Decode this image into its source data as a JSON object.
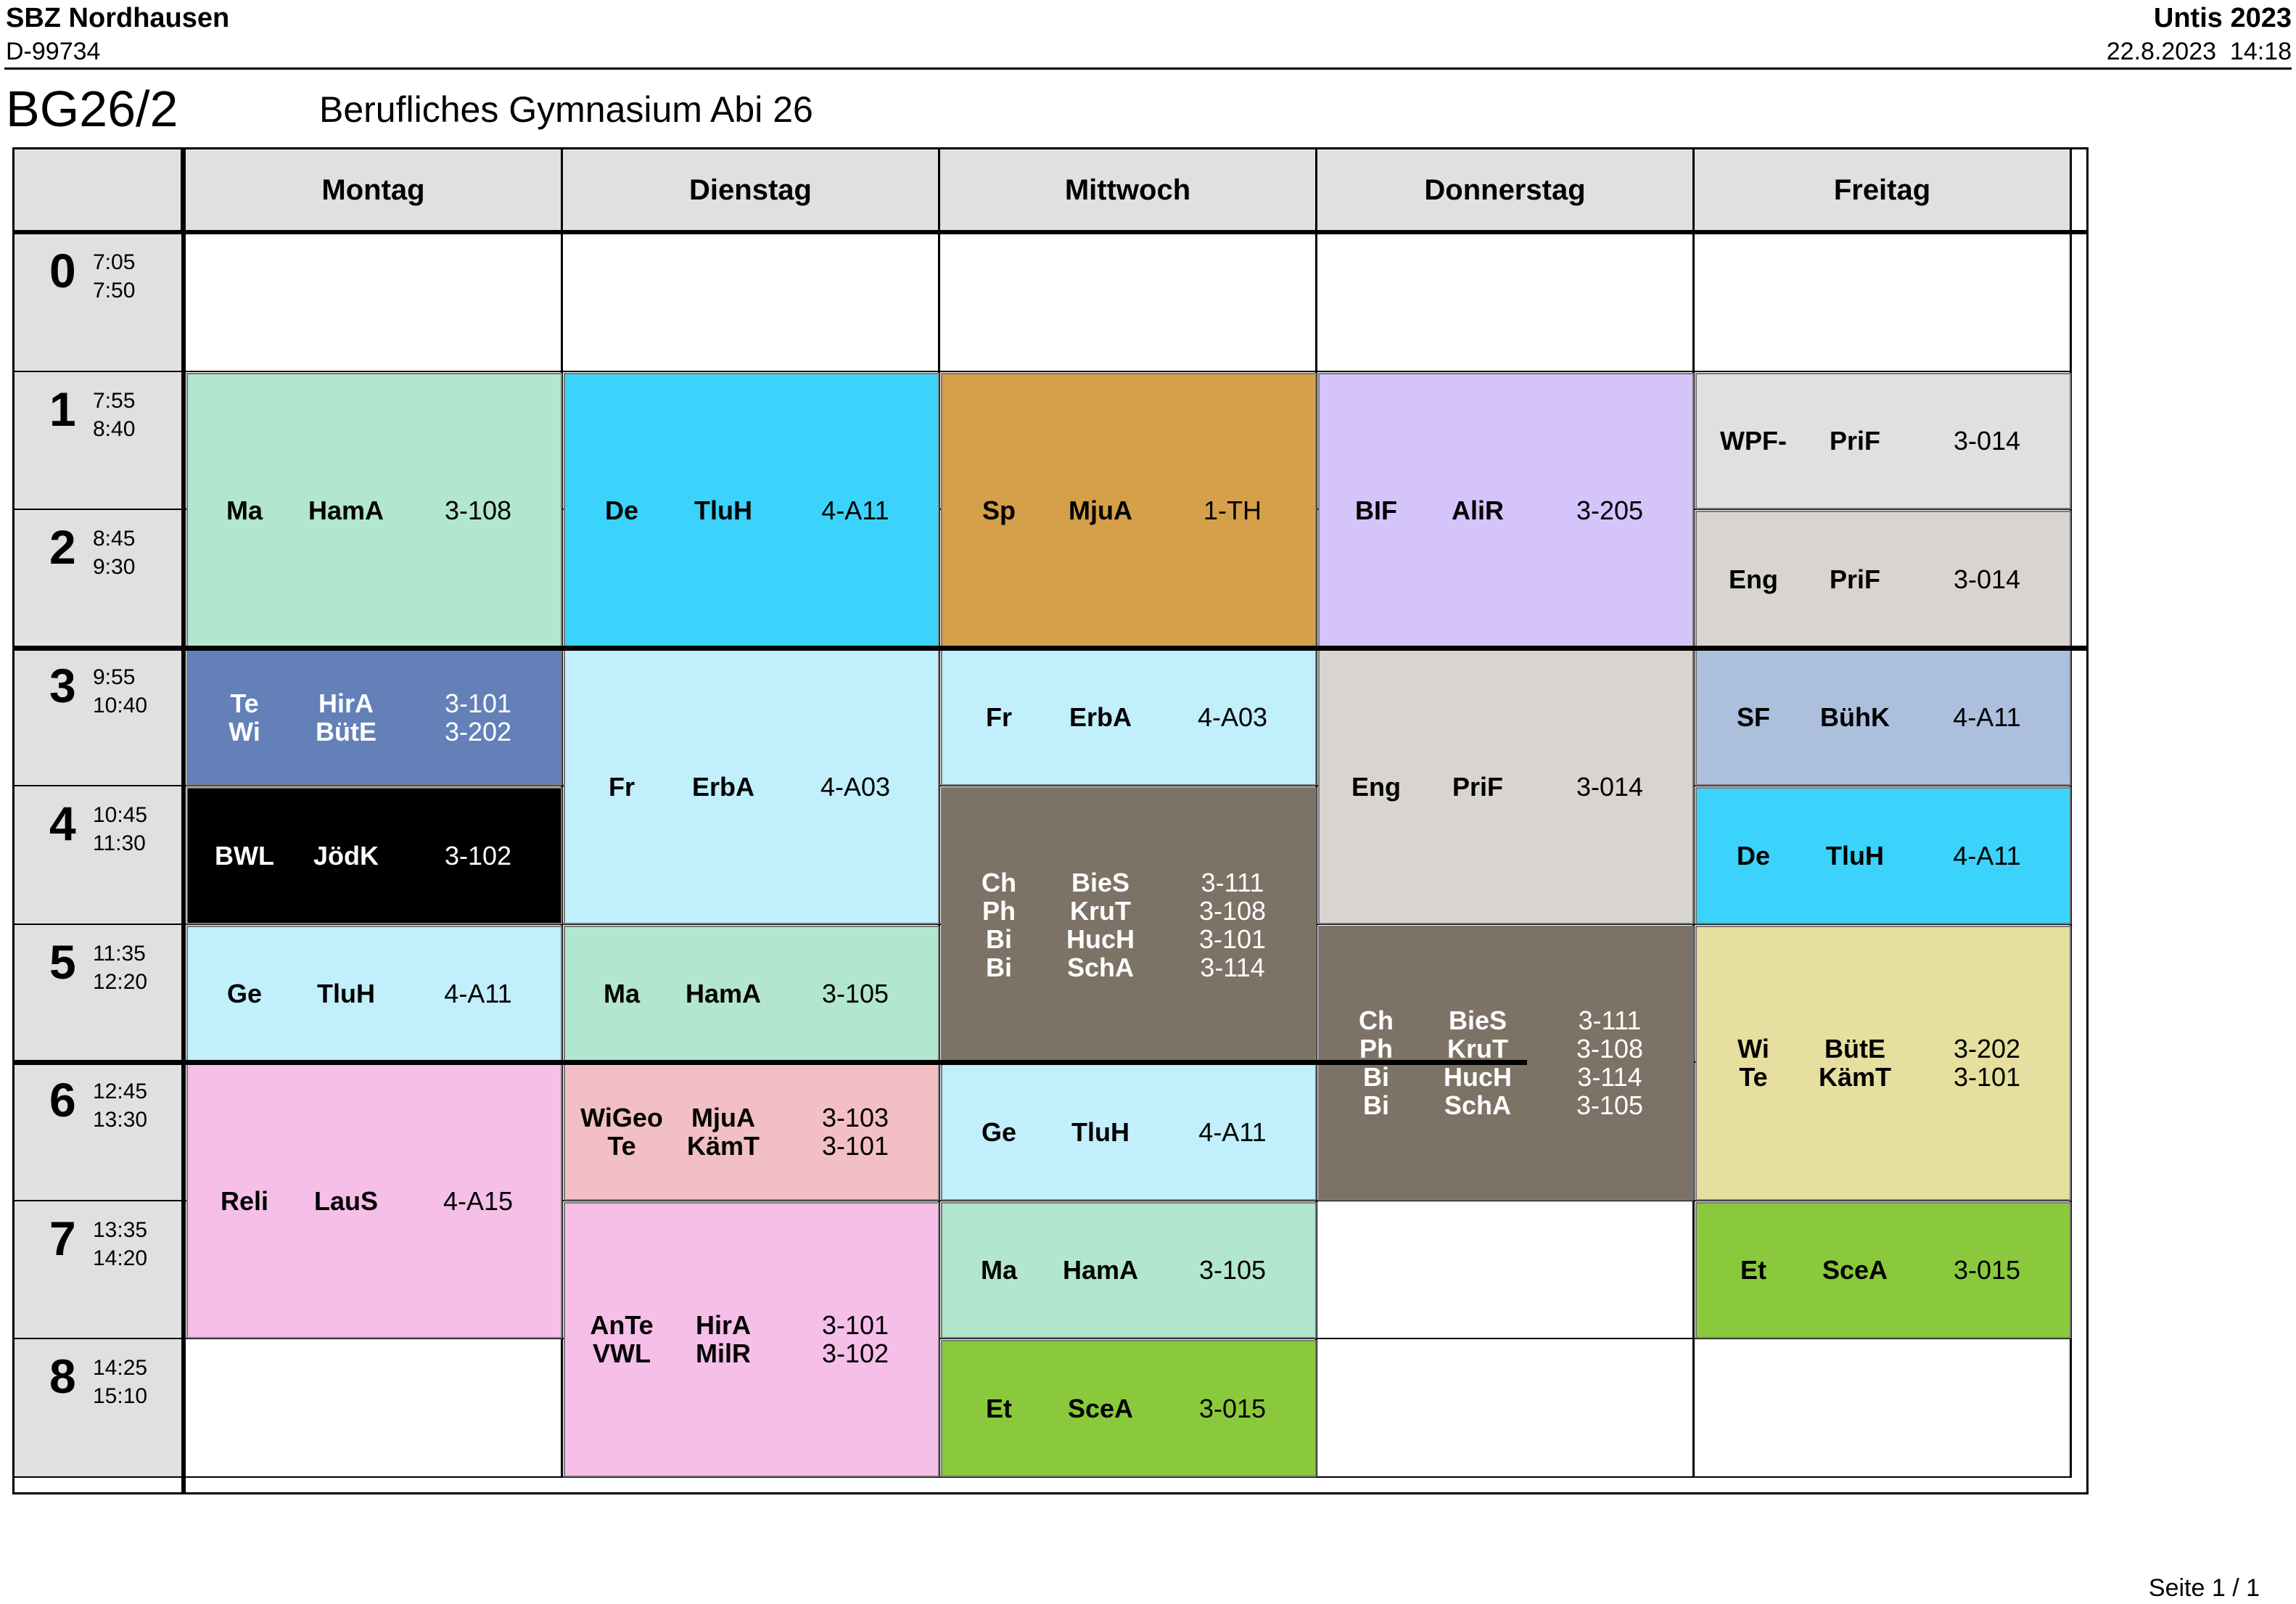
{
  "header": {
    "school": "SBZ Nordhausen",
    "school_id": "D-99734",
    "app": "Untis 2023",
    "timestamp": "22.8.2023  14:18"
  },
  "class": {
    "name": "BG26/2",
    "description": "Berufliches Gymnasium Abi 26"
  },
  "footer": {
    "page": "Seite 1 / 1"
  },
  "days": [
    "Montag",
    "Dienstag",
    "Mittwoch",
    "Donnerstag",
    "Freitag"
  ],
  "periods": [
    {
      "number": "0",
      "start": "7:05",
      "end": "7:50"
    },
    {
      "number": "1",
      "start": "7:55",
      "end": "8:40"
    },
    {
      "number": "2",
      "start": "8:45",
      "end": "9:30"
    },
    {
      "number": "3",
      "start": "9:55",
      "end": "10:40"
    },
    {
      "number": "4",
      "start": "10:45",
      "end": "11:30"
    },
    {
      "number": "5",
      "start": "11:35",
      "end": "12:20"
    },
    {
      "number": "6",
      "start": "12:45",
      "end": "13:30"
    },
    {
      "number": "7",
      "start": "13:35",
      "end": "14:20"
    },
    {
      "number": "8",
      "start": "14:25",
      "end": "15:10"
    }
  ],
  "lessons": [
    {
      "day": 0,
      "start": 1,
      "span": 2,
      "color": "#b3e6cf",
      "text_color": "#000000",
      "entries": [
        [
          "Ma",
          "HamA",
          "3-108"
        ]
      ]
    },
    {
      "day": 0,
      "start": 3,
      "span": 1,
      "color": "#6380b8",
      "text_color": "#ffffff",
      "entries": [
        [
          "Te",
          "HirA",
          "3-101"
        ],
        [
          "Wi",
          "BütE",
          "3-202"
        ]
      ]
    },
    {
      "day": 0,
      "start": 4,
      "span": 1,
      "color": "#000000",
      "text_color": "#ffffff",
      "entries": [
        [
          "BWL",
          "JödK",
          "3-102"
        ]
      ]
    },
    {
      "day": 0,
      "start": 5,
      "span": 1,
      "color": "#c1effc",
      "text_color": "#000000",
      "entries": [
        [
          "Ge",
          "TluH",
          "4-A11"
        ]
      ]
    },
    {
      "day": 0,
      "start": 6,
      "span": 2,
      "color": "#f5bfe8",
      "text_color": "#000000",
      "entries": [
        [
          "Reli",
          "LauS",
          "4-A15"
        ]
      ]
    },
    {
      "day": 1,
      "start": 1,
      "span": 2,
      "color": "#3bd3fc",
      "text_color": "#000000",
      "entries": [
        [
          "De",
          "TluH",
          "4-A11"
        ]
      ]
    },
    {
      "day": 1,
      "start": 3,
      "span": 2,
      "color": "#c1effc",
      "text_color": "#000000",
      "entries": [
        [
          "Fr",
          "ErbA",
          "4-A03"
        ]
      ]
    },
    {
      "day": 1,
      "start": 5,
      "span": 1,
      "color": "#b3e6cf",
      "text_color": "#000000",
      "entries": [
        [
          "Ma",
          "HamA",
          "3-105"
        ]
      ]
    },
    {
      "day": 1,
      "start": 6,
      "span": 1,
      "color": "#f2c0c4",
      "text_color": "#000000",
      "entries": [
        [
          "WiGeo",
          "MjuA",
          "3-103"
        ],
        [
          "Te",
          "KämT",
          "3-101"
        ]
      ]
    },
    {
      "day": 1,
      "start": 7,
      "span": 2,
      "color": "#f5bfe8",
      "text_color": "#000000",
      "entries": [
        [
          "AnTe",
          "HirA",
          "3-101"
        ],
        [
          "VWL",
          "MilR",
          "3-102"
        ]
      ]
    },
    {
      "day": 2,
      "start": 1,
      "span": 2,
      "color": "#d6a04a",
      "text_color": "#000000",
      "entries": [
        [
          "Sp",
          "MjuA",
          "1-TH"
        ]
      ]
    },
    {
      "day": 2,
      "start": 3,
      "span": 1,
      "color": "#c1effc",
      "text_color": "#000000",
      "entries": [
        [
          "Fr",
          "ErbA",
          "4-A03"
        ]
      ]
    },
    {
      "day": 2,
      "start": 4,
      "span": 2,
      "color": "#7d7266",
      "text_color": "#ffffff",
      "entries": [
        [
          "Ch",
          "BieS",
          "3-111"
        ],
        [
          "Ph",
          "KruT",
          "3-108"
        ],
        [
          "Bi",
          "HucH",
          "3-101"
        ],
        [
          "Bi",
          "SchA",
          "3-114"
        ]
      ]
    },
    {
      "day": 2,
      "start": 6,
      "span": 1,
      "color": "#c1effc",
      "text_color": "#000000",
      "entries": [
        [
          "Ge",
          "TluH",
          "4-A11"
        ]
      ]
    },
    {
      "day": 2,
      "start": 7,
      "span": 1,
      "color": "#b3e6cf",
      "text_color": "#000000",
      "entries": [
        [
          "Ma",
          "HamA",
          "3-105"
        ]
      ]
    },
    {
      "day": 2,
      "start": 8,
      "span": 1,
      "color": "#8ac93c",
      "text_color": "#000000",
      "entries": [
        [
          "Et",
          "SceA",
          "3-015"
        ]
      ]
    },
    {
      "day": 3,
      "start": 1,
      "span": 2,
      "color": "#d4c4fa",
      "text_color": "#000000",
      "entries": [
        [
          "BIF",
          "AliR",
          "3-205"
        ]
      ]
    },
    {
      "day": 3,
      "start": 3,
      "span": 2,
      "color": "#d8d4cf",
      "text_color": "#000000",
      "entries": [
        [
          "Eng",
          "PriF",
          "3-014"
        ]
      ]
    },
    {
      "day": 3,
      "start": 5,
      "span": 2,
      "color": "#7d7266",
      "text_color": "#ffffff",
      "entries": [
        [
          "Ch",
          "BieS",
          "3-111"
        ],
        [
          "Ph",
          "KruT",
          "3-108"
        ],
        [
          "Bi",
          "HucH",
          "3-114"
        ],
        [
          "Bi",
          "SchA",
          "3-105"
        ]
      ]
    },
    {
      "day": 4,
      "start": 1,
      "span": 1,
      "color": "#e0e0e0",
      "text_color": "#000000",
      "entries": [
        [
          "WPF-",
          "PriF",
          "3-014"
        ]
      ]
    },
    {
      "day": 4,
      "start": 2,
      "span": 1,
      "color": "#d8d4cf",
      "text_color": "#000000",
      "entries": [
        [
          "Eng",
          "PriF",
          "3-014"
        ]
      ]
    },
    {
      "day": 4,
      "start": 3,
      "span": 1,
      "color": "#acbfdd",
      "text_color": "#000000",
      "entries": [
        [
          "SF",
          "BühK",
          "4-A11"
        ]
      ]
    },
    {
      "day": 4,
      "start": 4,
      "span": 1,
      "color": "#3bd3fc",
      "text_color": "#000000",
      "entries": [
        [
          "De",
          "TluH",
          "4-A11"
        ]
      ]
    },
    {
      "day": 4,
      "start": 5,
      "span": 2,
      "color": "#e6df9f",
      "text_color": "#000000",
      "entries": [
        [
          "Wi",
          "BütE",
          "3-202"
        ],
        [
          "Te",
          "KämT",
          "3-101"
        ]
      ]
    },
    {
      "day": 4,
      "start": 7,
      "span": 1,
      "color": "#8ac93c",
      "text_color": "#000000",
      "entries": [
        [
          "Et",
          "SceA",
          "3-015"
        ]
      ]
    }
  ]
}
